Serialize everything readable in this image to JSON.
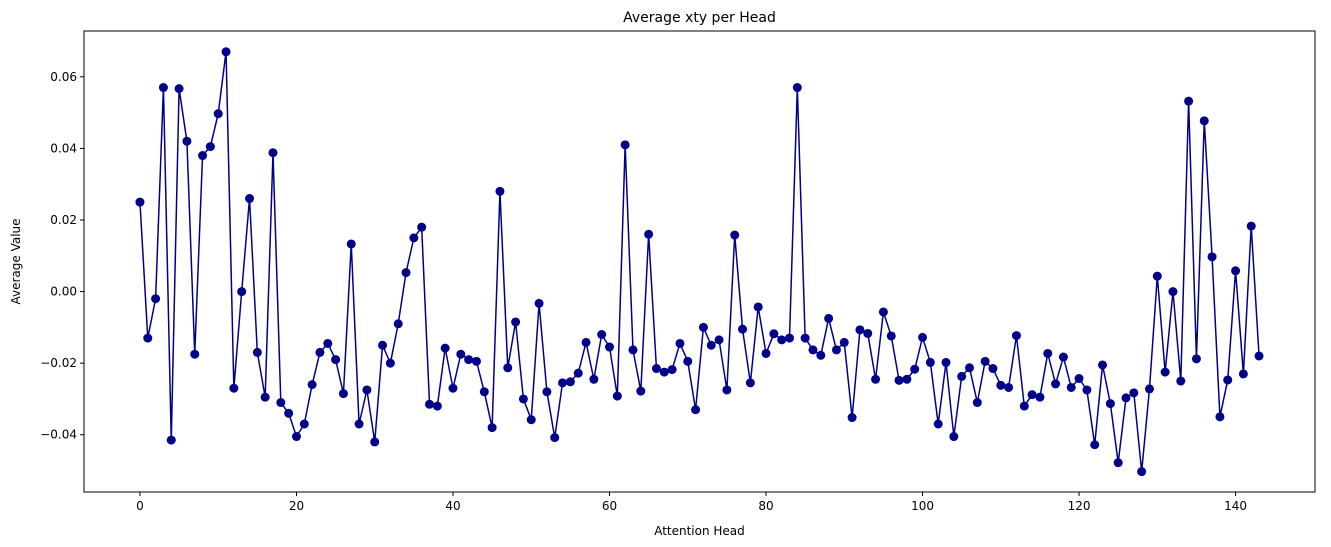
{
  "chart_data": {
    "type": "line",
    "title": "Average xty per Head",
    "xlabel": "Attention Head",
    "ylabel": "Average Value",
    "xlim": [
      -7.15,
      150.15
    ],
    "ylim": [
      -0.056,
      0.0728
    ],
    "xticks": [
      0,
      20,
      40,
      60,
      80,
      100,
      120,
      140
    ],
    "xtick_labels": [
      "0",
      "20",
      "40",
      "60",
      "80",
      "100",
      "120",
      "140"
    ],
    "yticks": [
      -0.04,
      -0.02,
      0.0,
      0.02,
      0.04,
      0.06
    ],
    "ytick_labels": [
      "−0.04",
      "−0.02",
      "0.00",
      "0.02",
      "0.04",
      "0.06"
    ],
    "grid": false,
    "marker": "circle",
    "color": "#00008B",
    "series": [
      {
        "name": "Average xty",
        "x": [
          0,
          1,
          2,
          3,
          4,
          5,
          6,
          7,
          8,
          9,
          10,
          11,
          12,
          13,
          14,
          15,
          16,
          17,
          18,
          19,
          20,
          21,
          22,
          23,
          24,
          25,
          26,
          27,
          28,
          29,
          30,
          31,
          32,
          33,
          34,
          35,
          36,
          37,
          38,
          39,
          40,
          41,
          42,
          43,
          44,
          45,
          46,
          47,
          48,
          49,
          50,
          51,
          52,
          53,
          54,
          55,
          56,
          57,
          58,
          59,
          60,
          61,
          62,
          63,
          64,
          65,
          66,
          67,
          68,
          69,
          70,
          71,
          72,
          73,
          74,
          75,
          76,
          77,
          78,
          79,
          80,
          81,
          82,
          83,
          84,
          85,
          86,
          87,
          88,
          89,
          90,
          91,
          92,
          93,
          94,
          95,
          96,
          97,
          98,
          99,
          100,
          101,
          102,
          103,
          104,
          105,
          106,
          107,
          108,
          109,
          110,
          111,
          112,
          113,
          114,
          115,
          116,
          117,
          118,
          119,
          120,
          121,
          122,
          123,
          124,
          125,
          126,
          127,
          128,
          129,
          130,
          131,
          132,
          133,
          134,
          135,
          136,
          137,
          138,
          139,
          140,
          141,
          142,
          143
        ],
        "values": [
          0.025,
          -0.013,
          -0.002,
          0.057,
          -0.0415,
          0.0567,
          0.042,
          -0.0175,
          0.038,
          0.0405,
          0.0497,
          0.067,
          -0.027,
          0.0,
          0.026,
          -0.017,
          -0.0295,
          0.0388,
          -0.031,
          -0.034,
          -0.0405,
          -0.037,
          -0.026,
          -0.017,
          -0.0145,
          -0.019,
          -0.0285,
          0.0133,
          -0.037,
          -0.0275,
          -0.042,
          -0.015,
          -0.02,
          -0.009,
          0.0053,
          0.015,
          0.018,
          -0.0315,
          -0.032,
          -0.0158,
          -0.027,
          -0.0175,
          -0.019,
          -0.0195,
          -0.028,
          -0.038,
          0.028,
          -0.0213,
          -0.0085,
          -0.03,
          -0.0358,
          -0.0033,
          -0.028,
          -0.0408,
          -0.0255,
          -0.0252,
          -0.0228,
          -0.0142,
          -0.0245,
          -0.012,
          -0.0155,
          -0.0292,
          0.041,
          -0.0163,
          -0.0278,
          0.016,
          -0.0215,
          -0.0225,
          -0.0218,
          -0.0145,
          -0.0195,
          -0.033,
          -0.01,
          -0.015,
          -0.0135,
          -0.0275,
          0.0158,
          -0.0105,
          -0.0255,
          -0.0043,
          -0.0173,
          -0.0118,
          -0.0135,
          -0.013,
          0.057,
          -0.013,
          -0.0163,
          -0.0178,
          -0.0075,
          -0.0163,
          -0.0142,
          -0.0352,
          -0.0107,
          -0.0117,
          -0.0245,
          -0.0057,
          -0.0124,
          -0.0248,
          -0.0245,
          -0.0217,
          -0.0128,
          -0.0198,
          -0.037,
          -0.0198,
          -0.0405,
          -0.0237,
          -0.0213,
          -0.031,
          -0.0195,
          -0.0215,
          -0.0262,
          -0.0268,
          -0.0123,
          -0.032,
          -0.0288,
          -0.0295,
          -0.0173,
          -0.0258,
          -0.0183,
          -0.0268,
          -0.0243,
          -0.0275,
          -0.0428,
          -0.0205,
          -0.0313,
          -0.0478,
          -0.0297,
          -0.0283,
          -0.0503,
          -0.0272,
          0.0043,
          -0.0225,
          0.0,
          -0.025,
          0.0532,
          -0.0188,
          0.0477,
          0.0097,
          -0.035,
          -0.0247,
          0.0058,
          -0.023,
          0.0183,
          -0.018
        ]
      }
    ]
  }
}
